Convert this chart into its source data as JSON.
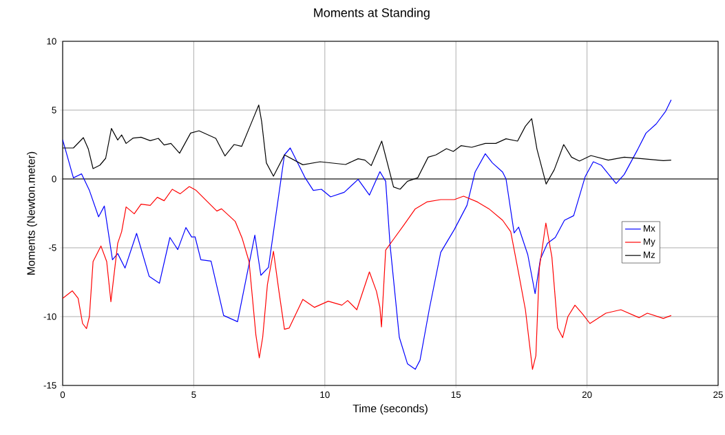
{
  "chart_data": {
    "type": "line",
    "title": "Moments at Standing",
    "xlabel": "Time (seconds)",
    "ylabel": "Moments (Newton.meter)",
    "xlim": [
      0,
      25
    ],
    "ylim": [
      -15,
      10
    ],
    "xticks": [
      0,
      5,
      10,
      15,
      20,
      25
    ],
    "yticks": [
      -15,
      -10,
      -5,
      0,
      5,
      10
    ],
    "grid": true,
    "legend": "right",
    "marker": "none",
    "line_style": "solid",
    "ref_lines": [
      {
        "axis": "y",
        "value": 0,
        "color": "#000000"
      }
    ],
    "series": [
      {
        "name": "Mx",
        "color": "#0000ff",
        "x": [
          0,
          0.41,
          0.72,
          1.02,
          1.37,
          1.59,
          1.9,
          2.1,
          2.38,
          2.82,
          3.3,
          3.69,
          4.09,
          4.39,
          4.7,
          4.92,
          5.05,
          5.27,
          5.66,
          6.14,
          6.67,
          7.33,
          7.56,
          7.85,
          8.46,
          8.68,
          9.25,
          9.56,
          9.87,
          10.22,
          10.74,
          11.27,
          11.7,
          12.1,
          12.32,
          12.49,
          12.84,
          13.15,
          13.45,
          13.63,
          13.98,
          14.42,
          14.94,
          15.42,
          15.73,
          16.12,
          16.39,
          16.78,
          16.91,
          17.22,
          17.39,
          17.74,
          18.02,
          18.22,
          18.49,
          18.79,
          19.14,
          19.49,
          19.93,
          20.24,
          20.54,
          21.11,
          21.42,
          21.94,
          22.25,
          22.64,
          23.0,
          23.21
        ],
        "values": [
          2.85,
          0.08,
          0.37,
          -0.83,
          -2.75,
          -1.97,
          -5.87,
          -5.42,
          -6.47,
          -3.95,
          -7.08,
          -7.58,
          -4.25,
          -5.13,
          -3.53,
          -4.22,
          -4.2,
          -5.87,
          -5.97,
          -9.92,
          -10.37,
          -4.08,
          -7.0,
          -6.42,
          1.75,
          2.25,
          0.08,
          -0.83,
          -0.75,
          -1.3,
          -0.97,
          -0.03,
          -1.17,
          0.53,
          -0.17,
          -4.83,
          -11.5,
          -13.42,
          -13.83,
          -13.17,
          -9.5,
          -5.33,
          -3.67,
          -1.92,
          0.5,
          1.83,
          1.17,
          0.5,
          0,
          -3.92,
          -3.5,
          -5.5,
          -8.33,
          -5.83,
          -4.67,
          -4.25,
          -3.0,
          -2.67,
          0.17,
          1.25,
          1.0,
          -0.33,
          0.33,
          2.17,
          3.33,
          4.0,
          4.92,
          5.75
        ]
      },
      {
        "name": "My",
        "color": "#ff0000",
        "x": [
          0,
          0.37,
          0.59,
          0.76,
          0.91,
          1.02,
          1.16,
          1.46,
          1.68,
          1.84,
          2.1,
          2.25,
          2.42,
          2.73,
          2.99,
          3.34,
          3.61,
          3.87,
          4.18,
          4.48,
          4.83,
          5.09,
          5.53,
          5.88,
          6.06,
          6.58,
          6.85,
          7.11,
          7.37,
          7.5,
          7.63,
          7.81,
          8.04,
          8.25,
          8.46,
          8.64,
          9.16,
          9.6,
          10.13,
          10.65,
          10.87,
          11.22,
          11.7,
          11.97,
          12.1,
          12.16,
          12.32,
          12.67,
          13.02,
          13.45,
          13.89,
          14.42,
          14.94,
          15.29,
          15.82,
          16.26,
          16.78,
          17.09,
          17.39,
          17.65,
          17.92,
          18.05,
          18.18,
          18.43,
          18.66,
          18.88,
          19.07,
          19.27,
          19.54,
          19.84,
          20.11,
          20.72,
          21.29,
          21.99,
          22.3,
          22.91,
          23.21
        ],
        "values": [
          -8.67,
          -8.13,
          -8.67,
          -10.5,
          -10.87,
          -10.0,
          -6.0,
          -4.87,
          -6.0,
          -8.92,
          -4.67,
          -3.83,
          -2.03,
          -2.53,
          -1.83,
          -1.92,
          -1.33,
          -1.58,
          -0.75,
          -1.08,
          -0.55,
          -0.83,
          -1.67,
          -2.33,
          -2.17,
          -3.08,
          -4.33,
          -6.0,
          -11.33,
          -13.0,
          -11.5,
          -7.67,
          -5.25,
          -8.17,
          -10.92,
          -10.83,
          -8.75,
          -9.33,
          -8.88,
          -9.17,
          -8.83,
          -9.5,
          -6.75,
          -8.17,
          -9.33,
          -10.75,
          -5.17,
          -4.25,
          -3.33,
          -2.17,
          -1.67,
          -1.5,
          -1.5,
          -1.25,
          -1.67,
          -2.17,
          -3.0,
          -3.83,
          -6.83,
          -9.5,
          -13.83,
          -12.83,
          -6.5,
          -3.2,
          -5.67,
          -10.83,
          -11.53,
          -10.0,
          -9.17,
          -9.83,
          -10.5,
          -9.75,
          -9.5,
          -10.08,
          -9.75,
          -10.13,
          -9.92
        ]
      },
      {
        "name": "Mz",
        "color": "#000000",
        "x": [
          0,
          0.41,
          0.79,
          0.98,
          1.16,
          1.42,
          1.64,
          1.86,
          2.1,
          2.25,
          2.42,
          2.69,
          2.99,
          3.34,
          3.65,
          3.87,
          4.13,
          4.46,
          4.88,
          5.2,
          5.84,
          6.19,
          6.54,
          6.83,
          7.2,
          7.48,
          7.59,
          7.77,
          8.04,
          8.46,
          9.16,
          9.82,
          10.79,
          11.27,
          11.53,
          11.77,
          12.17,
          12.62,
          12.87,
          13.15,
          13.54,
          13.94,
          14.24,
          14.64,
          14.9,
          15.2,
          15.6,
          16.12,
          16.52,
          16.91,
          17.35,
          17.65,
          17.89,
          18.09,
          18.44,
          18.75,
          19.11,
          19.41,
          19.71,
          20.15,
          20.81,
          21.42,
          22.12,
          22.91,
          23.21
        ],
        "values": [
          2.25,
          2.25,
          3.0,
          2.17,
          0.75,
          1.0,
          1.5,
          3.67,
          2.83,
          3.2,
          2.58,
          2.97,
          3.03,
          2.78,
          2.95,
          2.47,
          2.58,
          1.87,
          3.33,
          3.5,
          2.95,
          1.67,
          2.5,
          2.37,
          4.08,
          5.37,
          4.17,
          1.17,
          0.2,
          1.75,
          1.03,
          1.25,
          1.05,
          1.47,
          1.37,
          0.97,
          2.75,
          -0.58,
          -0.75,
          -0.17,
          0.08,
          1.58,
          1.75,
          2.2,
          2.0,
          2.42,
          2.3,
          2.58,
          2.58,
          2.92,
          2.75,
          3.83,
          4.38,
          2.17,
          -0.37,
          0.67,
          2.5,
          1.58,
          1.3,
          1.7,
          1.37,
          1.58,
          1.47,
          1.33,
          1.37
        ]
      }
    ]
  }
}
